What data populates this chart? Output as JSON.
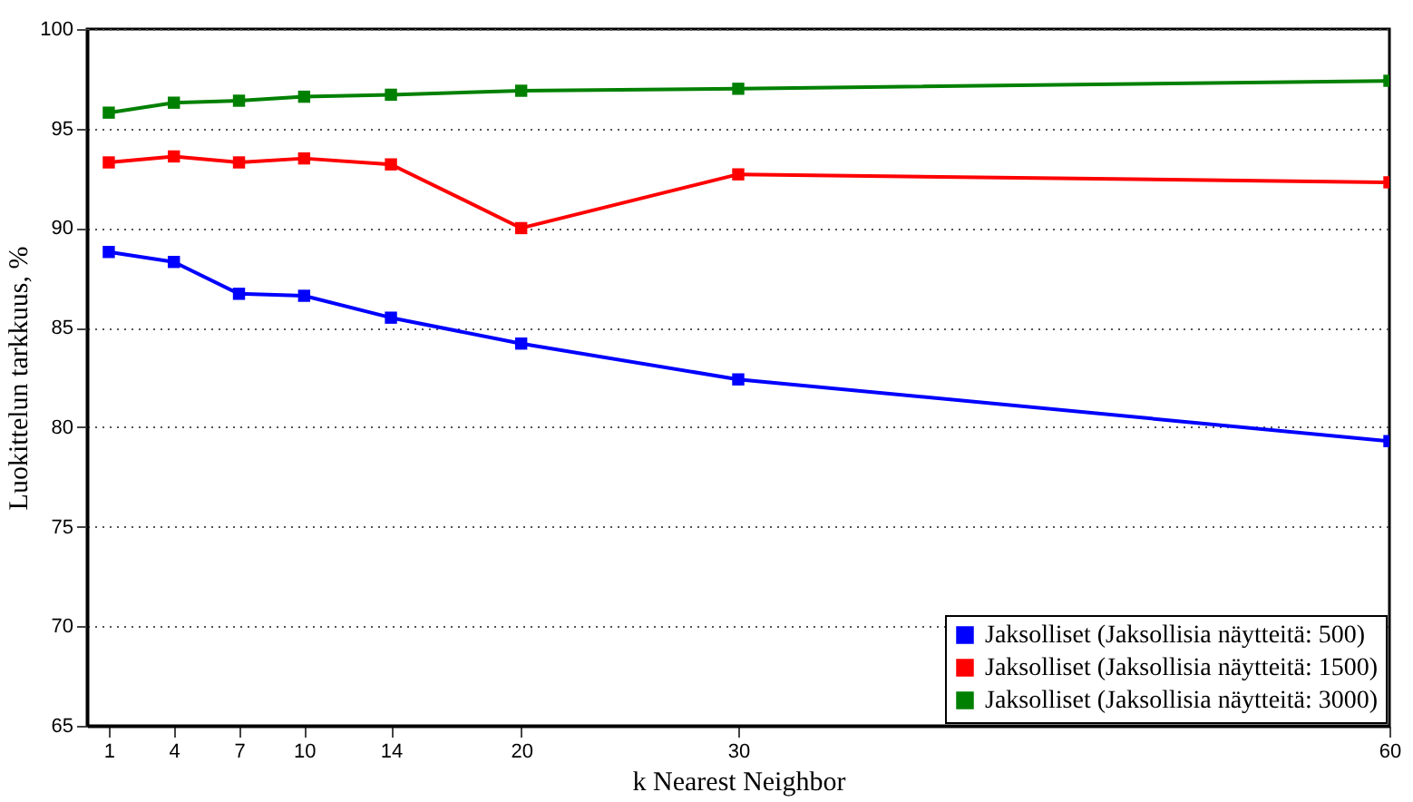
{
  "chart_data": {
    "type": "line",
    "xlabel": "k Nearest Neighbor",
    "ylabel": "Luokittelun tarkkuus, %",
    "x": [
      1,
      4,
      7,
      10,
      14,
      20,
      30,
      60
    ],
    "series": [
      {
        "name": "Jaksolliset (Jaksollisia näytteitä: 500)",
        "color": "#0000ff",
        "values": [
          88.8,
          88.3,
          86.7,
          86.6,
          85.5,
          84.2,
          82.4,
          79.3
        ]
      },
      {
        "name": "Jaksolliset (Jaksollisia näytteitä: 1500)",
        "color": "#ff0000",
        "values": [
          93.3,
          93.6,
          93.3,
          93.5,
          93.2,
          90.0,
          92.7,
          92.3
        ]
      },
      {
        "name": "Jaksolliset (Jaksollisia näytteitä: 3000)",
        "color": "#008000",
        "values": [
          95.8,
          96.3,
          96.4,
          96.6,
          96.7,
          96.9,
          97.0,
          97.4
        ]
      }
    ],
    "xlim": [
      0,
      60
    ],
    "xticks": [
      1,
      4,
      7,
      10,
      14,
      20,
      30,
      60
    ],
    "ylim": [
      65,
      100
    ],
    "yticks": [
      65,
      70,
      75,
      80,
      85,
      90,
      95,
      100
    ],
    "grid": "y",
    "legend": "bottom right",
    "marker": "square",
    "line_style": "solid"
  }
}
